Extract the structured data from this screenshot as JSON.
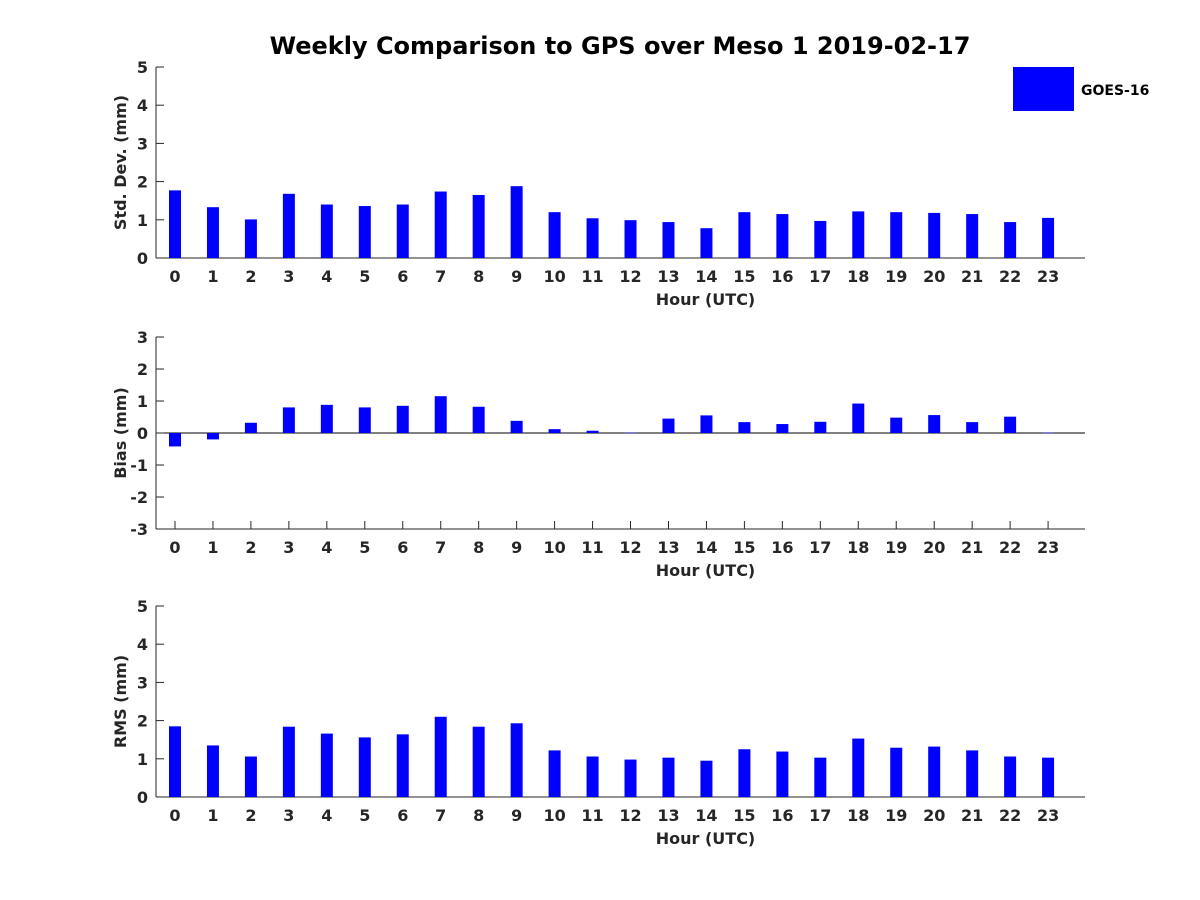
{
  "chart_title": "Weekly Comparison to GPS over Meso 1 2019-02-17",
  "legend": {
    "label": "GOES-16",
    "color": "#0000ff"
  },
  "chart_data": [
    {
      "type": "bar",
      "title": "Weekly Comparison to GPS over Meso 1 2019-02-17",
      "xlabel": "Hour (UTC)",
      "ylabel": "Std. Dev. (mm)",
      "ylim": [
        0,
        5
      ],
      "yticks": [
        "0",
        "1",
        "2",
        "3",
        "4",
        "5"
      ],
      "categories": [
        "0",
        "1",
        "2",
        "3",
        "4",
        "5",
        "6",
        "7",
        "8",
        "9",
        "10",
        "11",
        "12",
        "13",
        "14",
        "15",
        "16",
        "17",
        "18",
        "19",
        "20",
        "21",
        "22",
        "23"
      ],
      "series": [
        {
          "name": "GOES-16",
          "color": "#0000ff",
          "values": [
            1.77,
            1.33,
            1.01,
            1.68,
            1.4,
            1.36,
            1.4,
            1.74,
            1.65,
            1.88,
            1.2,
            1.04,
            0.99,
            0.94,
            0.78,
            1.2,
            1.15,
            0.97,
            1.22,
            1.2,
            1.18,
            1.15,
            0.94,
            1.05
          ]
        }
      ]
    },
    {
      "type": "bar",
      "title": "",
      "xlabel": "Hour (UTC)",
      "ylabel": "Bias (mm)",
      "ylim": [
        -3,
        3
      ],
      "yticks": [
        "-3",
        "-2",
        "-1",
        "0",
        "1",
        "2",
        "3"
      ],
      "categories": [
        "0",
        "1",
        "2",
        "3",
        "4",
        "5",
        "6",
        "7",
        "8",
        "9",
        "10",
        "11",
        "12",
        "13",
        "14",
        "15",
        "16",
        "17",
        "18",
        "19",
        "20",
        "21",
        "22",
        "23"
      ],
      "series": [
        {
          "name": "GOES-16",
          "color": "#0000ff",
          "values": [
            -0.42,
            -0.2,
            0.32,
            0.8,
            0.88,
            0.8,
            0.85,
            1.15,
            0.82,
            0.38,
            0.12,
            0.07,
            0.01,
            0.45,
            0.55,
            0.34,
            0.28,
            0.35,
            0.92,
            0.48,
            0.56,
            0.34,
            0.51,
            0.01
          ]
        }
      ]
    },
    {
      "type": "bar",
      "title": "",
      "xlabel": "Hour (UTC)",
      "ylabel": "RMS (mm)",
      "ylim": [
        0,
        5
      ],
      "yticks": [
        "0",
        "1",
        "2",
        "3",
        "4",
        "5"
      ],
      "categories": [
        "0",
        "1",
        "2",
        "3",
        "4",
        "5",
        "6",
        "7",
        "8",
        "9",
        "10",
        "11",
        "12",
        "13",
        "14",
        "15",
        "16",
        "17",
        "18",
        "19",
        "20",
        "21",
        "22",
        "23"
      ],
      "series": [
        {
          "name": "GOES-16",
          "color": "#0000ff",
          "values": [
            1.85,
            1.35,
            1.06,
            1.84,
            1.66,
            1.56,
            1.64,
            2.1,
            1.84,
            1.93,
            1.22,
            1.06,
            0.98,
            1.03,
            0.95,
            1.25,
            1.19,
            1.03,
            1.53,
            1.29,
            1.32,
            1.22,
            1.06,
            1.03
          ]
        }
      ]
    }
  ]
}
